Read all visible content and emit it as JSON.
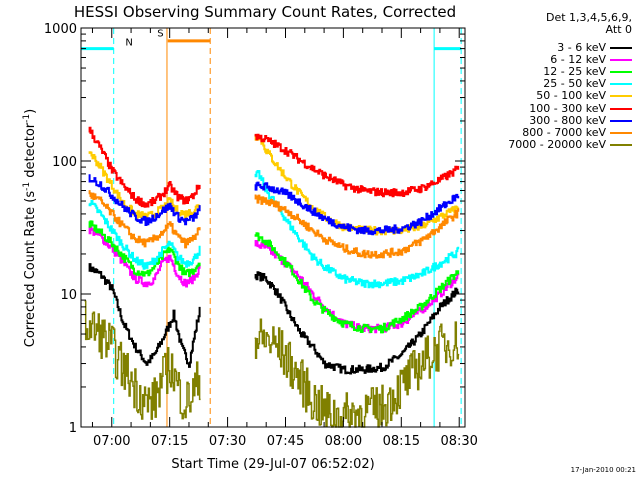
{
  "chart_data": {
    "type": "line",
    "title": "HESSI Observing Summary Count Rates, Corrected",
    "xlabel": "Start Time (29-Jul-07 06:52:02)",
    "ylabel": "Corrected Count Rate (s⁻¹ detector⁻¹)",
    "ylabel_main": "Corrected Count Rate (s",
    "ylabel_sup1": "-1",
    "ylabel_mid": " detector",
    "ylabel_sup2": "-1",
    "ylabel_end": ")",
    "x_tick_labels": [
      "07:00",
      "07:15",
      "07:30",
      "07:45",
      "08:00",
      "08:15",
      "08:30"
    ],
    "x_tick_minutes": [
      60,
      75,
      90,
      105,
      120,
      135,
      150
    ],
    "x_range_minutes": [
      52.03,
      151.5
    ],
    "y_scale": "log",
    "ylim": [
      1,
      1000
    ],
    "y_tick_labels": [
      "1",
      "10",
      "100",
      "1000"
    ],
    "y_tick_values": [
      1,
      10,
      100,
      1000
    ],
    "legend_header": [
      "Det 1,3,4,5,6,9,",
      "Att 0"
    ],
    "legend_position": "right",
    "series": [
      {
        "name": "3 - 6 keV",
        "color": "#000000",
        "points": [
          [
            54,
            16
          ],
          [
            57,
            14
          ],
          [
            60,
            11
          ],
          [
            63,
            6
          ],
          [
            66,
            4
          ],
          [
            69,
            3
          ],
          [
            71,
            3.5
          ],
          [
            73,
            4.5
          ],
          [
            75,
            6
          ],
          [
            76,
            7
          ],
          [
            78,
            4
          ],
          [
            80,
            3
          ],
          [
            82,
            6
          ],
          [
            83,
            8
          ],
          [
            97,
            14
          ],
          [
            100,
            13
          ],
          [
            103,
            10
          ],
          [
            106,
            7
          ],
          [
            109,
            5
          ],
          [
            112,
            4
          ],
          [
            115,
            3
          ],
          [
            120,
            2.7
          ],
          [
            125,
            2.7
          ],
          [
            130,
            2.8
          ],
          [
            135,
            3.5
          ],
          [
            140,
            5
          ],
          [
            145,
            8
          ],
          [
            150,
            11
          ]
        ]
      },
      {
        "name": "6 - 12 keV",
        "color": "#ff00ff",
        "points": [
          [
            54,
            31
          ],
          [
            57,
            27
          ],
          [
            60,
            22
          ],
          [
            63,
            17
          ],
          [
            66,
            13
          ],
          [
            69,
            12
          ],
          [
            71,
            13
          ],
          [
            73,
            17
          ],
          [
            75,
            19
          ],
          [
            77,
            14
          ],
          [
            79,
            12
          ],
          [
            81,
            13
          ],
          [
            83,
            16
          ],
          [
            97,
            24
          ],
          [
            100,
            22
          ],
          [
            103,
            19
          ],
          [
            106,
            16
          ],
          [
            109,
            13
          ],
          [
            112,
            10
          ],
          [
            115,
            8
          ],
          [
            120,
            6
          ],
          [
            125,
            5.5
          ],
          [
            130,
            5.5
          ],
          [
            135,
            6
          ],
          [
            140,
            7.5
          ],
          [
            145,
            10
          ],
          [
            150,
            14
          ]
        ]
      },
      {
        "name": "12 - 25 keV",
        "color": "#00ff00",
        "points": [
          [
            54,
            34
          ],
          [
            57,
            29
          ],
          [
            60,
            24
          ],
          [
            63,
            19
          ],
          [
            66,
            15
          ],
          [
            69,
            14
          ],
          [
            71,
            16
          ],
          [
            73,
            19
          ],
          [
            75,
            22
          ],
          [
            77,
            17
          ],
          [
            79,
            14
          ],
          [
            81,
            15
          ],
          [
            83,
            18
          ],
          [
            97,
            28
          ],
          [
            100,
            25
          ],
          [
            103,
            20
          ],
          [
            106,
            16
          ],
          [
            109,
            12
          ],
          [
            112,
            9
          ],
          [
            115,
            7.5
          ],
          [
            120,
            6
          ],
          [
            125,
            5.5
          ],
          [
            130,
            5.5
          ],
          [
            135,
            6.5
          ],
          [
            140,
            8
          ],
          [
            145,
            11
          ],
          [
            150,
            15
          ]
        ]
      },
      {
        "name": "25 - 50 keV",
        "color": "#00ffff",
        "points": [
          [
            54,
            50
          ],
          [
            57,
            40
          ],
          [
            60,
            30
          ],
          [
            63,
            23
          ],
          [
            66,
            18
          ],
          [
            69,
            16
          ],
          [
            71,
            18
          ],
          [
            73,
            21
          ],
          [
            75,
            24
          ],
          [
            77,
            19
          ],
          [
            79,
            17
          ],
          [
            81,
            18
          ],
          [
            83,
            22
          ],
          [
            97,
            75
          ],
          [
            98,
            80
          ],
          [
            100,
            60
          ],
          [
            103,
            45
          ],
          [
            106,
            33
          ],
          [
            109,
            25
          ],
          [
            112,
            19
          ],
          [
            115,
            16
          ],
          [
            120,
            13
          ],
          [
            125,
            12
          ],
          [
            130,
            12
          ],
          [
            135,
            12.5
          ],
          [
            140,
            14
          ],
          [
            145,
            17
          ],
          [
            150,
            21
          ]
        ]
      },
      {
        "name": "50 - 100 keV",
        "color": "#ffcc00",
        "points": [
          [
            54,
            120
          ],
          [
            57,
            90
          ],
          [
            60,
            65
          ],
          [
            63,
            48
          ],
          [
            66,
            40
          ],
          [
            69,
            38
          ],
          [
            71,
            40
          ],
          [
            73,
            44
          ],
          [
            75,
            50
          ],
          [
            77,
            42
          ],
          [
            79,
            40
          ],
          [
            81,
            42
          ],
          [
            83,
            48
          ],
          [
            97,
            150
          ],
          [
            98,
            155
          ],
          [
            100,
            120
          ],
          [
            103,
            90
          ],
          [
            106,
            70
          ],
          [
            109,
            55
          ],
          [
            112,
            45
          ],
          [
            115,
            38
          ],
          [
            120,
            32
          ],
          [
            125,
            30
          ],
          [
            130,
            30
          ],
          [
            135,
            30
          ],
          [
            140,
            32
          ],
          [
            145,
            38
          ],
          [
            150,
            45
          ]
        ]
      },
      {
        "name": "100 - 300 keV",
        "color": "#ff0000",
        "points": [
          [
            54,
            175
          ],
          [
            56,
            140
          ],
          [
            58,
            110
          ],
          [
            60,
            85
          ],
          [
            63,
            65
          ],
          [
            66,
            52
          ],
          [
            69,
            47
          ],
          [
            71,
            50
          ],
          [
            73,
            56
          ],
          [
            75,
            65
          ],
          [
            77,
            54
          ],
          [
            79,
            50
          ],
          [
            81,
            55
          ],
          [
            83,
            68
          ],
          [
            97,
            155
          ],
          [
            100,
            145
          ],
          [
            103,
            130
          ],
          [
            106,
            115
          ],
          [
            109,
            100
          ],
          [
            112,
            88
          ],
          [
            115,
            78
          ],
          [
            120,
            66
          ],
          [
            125,
            60
          ],
          [
            130,
            58
          ],
          [
            135,
            58
          ],
          [
            140,
            62
          ],
          [
            145,
            72
          ],
          [
            150,
            88
          ]
        ]
      },
      {
        "name": "300 - 800 keV",
        "color": "#0000ff",
        "points": [
          [
            54,
            75
          ],
          [
            57,
            67
          ],
          [
            60,
            55
          ],
          [
            63,
            45
          ],
          [
            66,
            38
          ],
          [
            69,
            35
          ],
          [
            71,
            38
          ],
          [
            73,
            42
          ],
          [
            75,
            46
          ],
          [
            77,
            38
          ],
          [
            79,
            35
          ],
          [
            81,
            37
          ],
          [
            83,
            44
          ],
          [
            97,
            65
          ],
          [
            100,
            64
          ],
          [
            103,
            60
          ],
          [
            106,
            55
          ],
          [
            109,
            48
          ],
          [
            112,
            42
          ],
          [
            115,
            37
          ],
          [
            120,
            32
          ],
          [
            125,
            30
          ],
          [
            130,
            30
          ],
          [
            135,
            31
          ],
          [
            140,
            35
          ],
          [
            145,
            44
          ],
          [
            150,
            56
          ]
        ]
      },
      {
        "name": "800 - 7000 keV",
        "color": "#ff8800",
        "points": [
          [
            54,
            57
          ],
          [
            57,
            50
          ],
          [
            60,
            40
          ],
          [
            63,
            32
          ],
          [
            66,
            26
          ],
          [
            69,
            24
          ],
          [
            71,
            26
          ],
          [
            73,
            29
          ],
          [
            75,
            33
          ],
          [
            77,
            27
          ],
          [
            79,
            24
          ],
          [
            81,
            26
          ],
          [
            83,
            31
          ],
          [
            97,
            52
          ],
          [
            100,
            50
          ],
          [
            103,
            46
          ],
          [
            106,
            41
          ],
          [
            109,
            35
          ],
          [
            112,
            30
          ],
          [
            115,
            26
          ],
          [
            120,
            22
          ],
          [
            125,
            20
          ],
          [
            130,
            20
          ],
          [
            135,
            21
          ],
          [
            140,
            25
          ],
          [
            145,
            32
          ],
          [
            150,
            42
          ]
        ]
      },
      {
        "name": "7000 - 20000 keV",
        "color": "#808000",
        "points": [
          [
            53,
            6
          ],
          [
            57,
            5
          ],
          [
            60,
            4
          ],
          [
            62,
            3
          ],
          [
            64,
            2.5
          ],
          [
            66,
            2
          ],
          [
            69,
            1.5
          ],
          [
            71,
            1.6
          ],
          [
            73,
            2.2
          ],
          [
            75,
            3
          ],
          [
            77,
            2
          ],
          [
            79,
            1.5
          ],
          [
            81,
            1.8
          ],
          [
            83,
            2.5
          ],
          [
            97,
            4.5
          ],
          [
            100,
            4.5
          ],
          [
            103,
            4
          ],
          [
            106,
            3
          ],
          [
            109,
            2.2
          ],
          [
            112,
            1.6
          ],
          [
            115,
            1.3
          ],
          [
            120,
            1.2
          ],
          [
            125,
            1.3
          ],
          [
            130,
            1.4
          ],
          [
            135,
            2
          ],
          [
            140,
            3
          ],
          [
            145,
            4
          ],
          [
            150,
            4.5
          ]
        ]
      }
    ],
    "annotations": [
      {
        "label": "N",
        "color": "#00ffff"
      },
      {
        "label": "S",
        "color": "#ff8800"
      }
    ],
    "flag_bars": [
      {
        "color": "#00ffff",
        "x": [
          52.03,
          60.5
        ],
        "y": 700
      },
      {
        "color": "#ff8800",
        "x": [
          74.5,
          85.5
        ],
        "y": 800
      },
      {
        "color": "#00ffff",
        "x": [
          143.5,
          150.5
        ],
        "y": 700
      }
    ],
    "vlines": [
      {
        "x": 60.5,
        "color": "#00ffff",
        "style": "dashed"
      },
      {
        "x": 74.3,
        "color": "#ff8800",
        "style": "solid"
      },
      {
        "x": 85.5,
        "color": "#ff8800",
        "style": "dashed"
      },
      {
        "x": 143.5,
        "color": "#00ffff",
        "style": "solid"
      },
      {
        "x": 150.5,
        "color": "#00ffff",
        "style": "dashed"
      }
    ],
    "grid": false
  },
  "timestamp": "17-Jan-2010 00:21"
}
